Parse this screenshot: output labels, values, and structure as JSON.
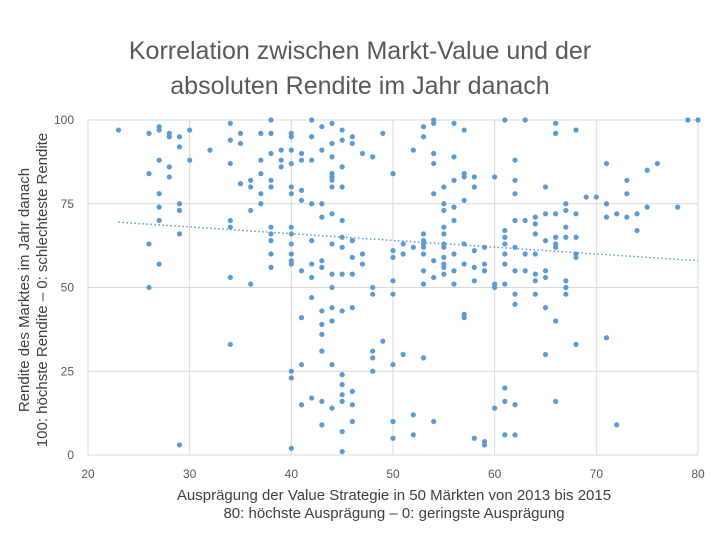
{
  "chart_data": {
    "type": "scatter",
    "title_lines": [
      "Korrelation zwischen Markt-Value und der",
      "absoluten Rendite im Jahr danach"
    ],
    "xlabel_lines": [
      "Ausprägung der Value Strategie in 50 Märkten von 2013 bis 2015",
      "80: höchste Ausprägung – 0: geringste Ausprägung"
    ],
    "ylabel_lines": [
      "Rendite des Marktes im Jahr danach",
      "100: höchste Rendite – 0: schlechteste Rendite"
    ],
    "xlim": [
      20,
      80
    ],
    "ylim": [
      0,
      100
    ],
    "xticks": [
      20,
      30,
      40,
      50,
      60,
      70,
      80
    ],
    "yticks": [
      0,
      25,
      50,
      75,
      100
    ],
    "grid": true,
    "marker_color": "#5b9bd5",
    "trendline": {
      "type": "linear",
      "style": "dotted",
      "from": [
        23,
        69.5
      ],
      "to": [
        80,
        58
      ]
    },
    "points": [
      [
        23,
        97
      ],
      [
        26,
        96
      ],
      [
        26,
        84
      ],
      [
        26,
        63
      ],
      [
        26,
        50
      ],
      [
        27,
        98
      ],
      [
        27,
        97
      ],
      [
        27,
        88
      ],
      [
        27,
        78
      ],
      [
        27,
        74
      ],
      [
        27,
        70
      ],
      [
        27,
        57
      ],
      [
        28,
        96
      ],
      [
        28,
        95
      ],
      [
        28,
        86
      ],
      [
        28,
        83
      ],
      [
        29,
        95
      ],
      [
        29,
        92
      ],
      [
        29,
        75
      ],
      [
        29,
        73
      ],
      [
        29,
        66
      ],
      [
        29,
        3
      ],
      [
        30,
        97
      ],
      [
        30,
        88
      ],
      [
        32,
        91
      ],
      [
        34,
        99
      ],
      [
        34,
        94
      ],
      [
        34,
        87
      ],
      [
        34,
        70
      ],
      [
        34,
        68
      ],
      [
        34,
        53
      ],
      [
        34,
        33
      ],
      [
        35,
        96
      ],
      [
        35,
        93
      ],
      [
        35,
        81
      ],
      [
        36,
        82
      ],
      [
        36,
        80
      ],
      [
        36,
        73
      ],
      [
        36,
        51
      ],
      [
        37,
        96
      ],
      [
        37,
        88
      ],
      [
        37,
        84
      ],
      [
        37,
        78
      ],
      [
        37,
        75
      ],
      [
        38,
        100
      ],
      [
        38,
        96
      ],
      [
        38,
        90
      ],
      [
        38,
        82
      ],
      [
        38,
        80
      ],
      [
        38,
        68
      ],
      [
        38,
        66
      ],
      [
        38,
        64
      ],
      [
        38,
        60
      ],
      [
        38,
        56
      ],
      [
        39,
        91
      ],
      [
        39,
        88
      ],
      [
        39,
        86
      ],
      [
        40,
        96
      ],
      [
        40,
        95
      ],
      [
        40,
        91
      ],
      [
        40,
        87
      ],
      [
        40,
        80
      ],
      [
        40,
        78
      ],
      [
        40,
        68
      ],
      [
        40,
        66
      ],
      [
        40,
        63
      ],
      [
        40,
        60
      ],
      [
        40,
        58
      ],
      [
        40,
        57
      ],
      [
        40,
        25
      ],
      [
        40,
        23
      ],
      [
        40,
        2
      ],
      [
        41,
        90
      ],
      [
        41,
        88
      ],
      [
        41,
        79
      ],
      [
        41,
        76
      ],
      [
        41,
        55
      ],
      [
        41,
        41
      ],
      [
        41,
        27
      ],
      [
        41,
        15
      ],
      [
        42,
        100
      ],
      [
        42,
        95
      ],
      [
        42,
        88
      ],
      [
        42,
        75
      ],
      [
        42,
        64
      ],
      [
        42,
        57
      ],
      [
        42,
        53
      ],
      [
        42,
        47
      ],
      [
        42,
        17
      ],
      [
        43,
        98
      ],
      [
        43,
        91
      ],
      [
        43,
        75
      ],
      [
        43,
        71
      ],
      [
        43,
        58
      ],
      [
        43,
        56
      ],
      [
        43,
        43
      ],
      [
        43,
        39
      ],
      [
        43,
        36
      ],
      [
        43,
        31
      ],
      [
        43,
        16
      ],
      [
        43,
        9
      ],
      [
        44,
        99
      ],
      [
        44,
        93
      ],
      [
        44,
        89
      ],
      [
        44,
        84
      ],
      [
        44,
        83
      ],
      [
        44,
        82
      ],
      [
        44,
        80
      ],
      [
        44,
        72
      ],
      [
        44,
        63
      ],
      [
        44,
        54
      ],
      [
        44,
        50
      ],
      [
        44,
        44
      ],
      [
        44,
        40
      ],
      [
        44,
        27
      ],
      [
        44,
        14
      ],
      [
        45,
        97
      ],
      [
        45,
        94
      ],
      [
        45,
        86
      ],
      [
        45,
        80
      ],
      [
        45,
        70
      ],
      [
        45,
        65
      ],
      [
        45,
        62
      ],
      [
        45,
        54
      ],
      [
        45,
        43
      ],
      [
        45,
        24
      ],
      [
        45,
        21
      ],
      [
        45,
        18
      ],
      [
        45,
        16
      ],
      [
        45,
        7
      ],
      [
        45,
        1
      ],
      [
        46,
        95
      ],
      [
        46,
        93
      ],
      [
        46,
        64
      ],
      [
        46,
        59
      ],
      [
        46,
        54
      ],
      [
        46,
        44
      ],
      [
        46,
        19
      ],
      [
        46,
        15
      ],
      [
        46,
        10
      ],
      [
        47,
        90
      ],
      [
        47,
        60
      ],
      [
        47,
        57
      ],
      [
        48,
        89
      ],
      [
        48,
        50
      ],
      [
        48,
        48
      ],
      [
        48,
        31
      ],
      [
        48,
        29
      ],
      [
        48,
        25
      ],
      [
        49,
        34
      ],
      [
        49,
        96
      ],
      [
        50,
        84
      ],
      [
        50,
        61
      ],
      [
        50,
        59
      ],
      [
        50,
        52
      ],
      [
        50,
        48
      ],
      [
        50,
        27
      ],
      [
        50,
        10
      ],
      [
        50,
        5
      ],
      [
        51,
        63
      ],
      [
        51,
        60
      ],
      [
        51,
        30
      ],
      [
        52,
        91
      ],
      [
        52,
        62
      ],
      [
        52,
        12
      ],
      [
        52,
        6
      ],
      [
        53,
        98
      ],
      [
        53,
        95
      ],
      [
        53,
        66
      ],
      [
        53,
        64
      ],
      [
        53,
        63
      ],
      [
        53,
        62
      ],
      [
        53,
        60
      ],
      [
        53,
        55
      ],
      [
        53,
        29
      ],
      [
        53,
        51
      ],
      [
        54,
        100
      ],
      [
        54,
        99
      ],
      [
        54,
        90
      ],
      [
        54,
        87
      ],
      [
        54,
        78
      ],
      [
        54,
        58
      ],
      [
        54,
        53
      ],
      [
        54,
        10
      ],
      [
        55,
        80
      ],
      [
        55,
        75
      ],
      [
        55,
        73
      ],
      [
        55,
        68
      ],
      [
        55,
        66
      ],
      [
        55,
        63
      ],
      [
        55,
        62
      ],
      [
        55,
        59
      ],
      [
        55,
        56
      ],
      [
        55,
        54
      ],
      [
        55,
        57
      ],
      [
        56,
        99
      ],
      [
        56,
        89
      ],
      [
        56,
        82
      ],
      [
        56,
        74
      ],
      [
        56,
        70
      ],
      [
        56,
        60
      ],
      [
        56,
        55
      ],
      [
        56,
        51
      ],
      [
        57,
        97
      ],
      [
        57,
        84
      ],
      [
        57,
        83
      ],
      [
        57,
        76
      ],
      [
        57,
        63
      ],
      [
        57,
        57
      ],
      [
        57,
        42
      ],
      [
        57,
        41
      ],
      [
        58,
        83
      ],
      [
        58,
        80
      ],
      [
        58,
        61
      ],
      [
        58,
        56
      ],
      [
        58,
        52
      ],
      [
        58,
        5
      ],
      [
        59,
        62
      ],
      [
        59,
        55
      ],
      [
        59,
        4
      ],
      [
        59,
        3
      ],
      [
        59,
        57
      ],
      [
        60,
        83
      ],
      [
        60,
        51
      ],
      [
        60,
        50
      ],
      [
        60,
        14
      ],
      [
        61,
        100
      ],
      [
        61,
        67
      ],
      [
        61,
        65
      ],
      [
        61,
        63
      ],
      [
        61,
        60
      ],
      [
        61,
        57
      ],
      [
        61,
        51
      ],
      [
        61,
        20
      ],
      [
        61,
        16
      ],
      [
        61,
        6
      ],
      [
        62,
        88
      ],
      [
        62,
        82
      ],
      [
        62,
        78
      ],
      [
        62,
        70
      ],
      [
        62,
        62
      ],
      [
        62,
        55
      ],
      [
        62,
        48
      ],
      [
        62,
        45
      ],
      [
        62,
        15
      ],
      [
        62,
        6
      ],
      [
        63,
        100
      ],
      [
        63,
        70
      ],
      [
        63,
        60
      ],
      [
        63,
        55
      ],
      [
        64,
        71
      ],
      [
        64,
        69
      ],
      [
        64,
        66
      ],
      [
        64,
        60
      ],
      [
        64,
        54
      ],
      [
        64,
        52
      ],
      [
        64,
        48
      ],
      [
        65,
        80
      ],
      [
        65,
        72
      ],
      [
        65,
        64
      ],
      [
        65,
        55
      ],
      [
        65,
        53
      ],
      [
        65,
        44
      ],
      [
        65,
        30
      ],
      [
        66,
        99
      ],
      [
        66,
        96
      ],
      [
        66,
        72
      ],
      [
        66,
        65
      ],
      [
        66,
        63
      ],
      [
        66,
        62
      ],
      [
        66,
        40
      ],
      [
        66,
        16
      ],
      [
        67,
        75
      ],
      [
        67,
        73
      ],
      [
        67,
        68
      ],
      [
        67,
        65
      ],
      [
        67,
        52
      ],
      [
        67,
        50
      ],
      [
        67,
        48
      ],
      [
        68,
        97
      ],
      [
        68,
        72
      ],
      [
        68,
        65
      ],
      [
        68,
        60
      ],
      [
        68,
        59
      ],
      [
        68,
        33
      ],
      [
        69,
        77
      ],
      [
        70,
        77
      ],
      [
        71,
        87
      ],
      [
        71,
        75
      ],
      [
        71,
        71
      ],
      [
        71,
        35
      ],
      [
        72,
        72
      ],
      [
        72,
        9
      ],
      [
        73,
        82
      ],
      [
        73,
        78
      ],
      [
        73,
        71
      ],
      [
        74,
        72
      ],
      [
        74,
        67
      ],
      [
        75,
        85
      ],
      [
        75,
        74
      ],
      [
        76,
        87
      ],
      [
        78,
        74
      ],
      [
        79,
        100
      ],
      [
        80,
        100
      ]
    ]
  }
}
